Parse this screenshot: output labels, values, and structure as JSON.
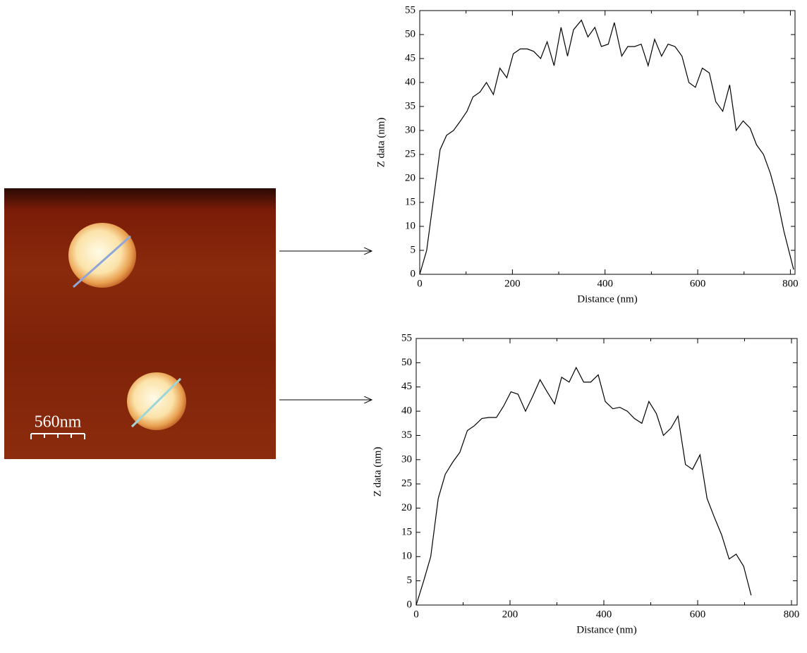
{
  "image": {
    "scale_label": "560nm"
  },
  "chart_data": [
    {
      "type": "line",
      "x_label": "Distance (nm)",
      "y_label": "Z data (nm)",
      "color": "#000000",
      "x": [
        0,
        15,
        44,
        58,
        73,
        88,
        102,
        115,
        130,
        144,
        159,
        173,
        188,
        202,
        217,
        232,
        246,
        261,
        275,
        290,
        305,
        319,
        332,
        349,
        363,
        378,
        392,
        407,
        420,
        436,
        449,
        464,
        478,
        493,
        507,
        522,
        536,
        551,
        566,
        581,
        595,
        610,
        625,
        639,
        654,
        669,
        683,
        698,
        713,
        727,
        742,
        757,
        771,
        786,
        807
      ],
      "values": [
        0,
        5,
        26,
        29,
        30,
        32,
        34,
        37,
        38,
        40,
        37.5,
        43,
        41,
        46,
        47,
        47,
        46.5,
        45,
        48.5,
        43.5,
        51.5,
        45.5,
        51,
        53,
        49.5,
        51.5,
        47.5,
        48,
        52.5,
        45.5,
        47.5,
        47.5,
        48,
        43.5,
        49,
        45.5,
        48,
        47.5,
        45.5,
        40,
        39,
        43,
        42,
        36,
        34,
        39.5,
        30,
        32,
        30.5,
        27,
        25,
        21,
        16,
        9,
        1
      ],
      "xlim": [
        0,
        810
      ],
      "xticks": [
        0,
        200,
        400,
        600,
        800
      ],
      "ylim": [
        0,
        55
      ],
      "yticks": [
        0,
        5,
        10,
        15,
        20,
        25,
        30,
        35,
        40,
        45,
        50,
        55
      ]
    },
    {
      "type": "line",
      "x_label": "Distance (nm)",
      "y_label": "Z data (nm)",
      "color": "#000000",
      "x": [
        0,
        16,
        31,
        47,
        62,
        78,
        93,
        109,
        124,
        140,
        155,
        171,
        186,
        202,
        217,
        233,
        248,
        264,
        279,
        295,
        310,
        326,
        341,
        357,
        372,
        388,
        403,
        419,
        434,
        450,
        465,
        481,
        496,
        512,
        527,
        543,
        558,
        574,
        589,
        605,
        620,
        636,
        651,
        667,
        682,
        698,
        714
      ],
      "values": [
        0,
        5,
        10,
        22,
        27,
        29.5,
        31.5,
        36,
        37,
        38.5,
        38.7,
        38.7,
        41,
        44,
        43.5,
        40,
        43,
        46.5,
        44,
        41.5,
        47,
        46,
        49,
        46,
        46,
        47.5,
        42,
        40.5,
        40.8,
        40,
        38.5,
        37.5,
        42,
        39.5,
        35,
        36.5,
        39,
        29,
        28,
        31,
        22,
        18,
        14.5,
        9.5,
        10.5,
        8,
        2
      ],
      "xlim": [
        0,
        812
      ],
      "xticks": [
        0,
        200,
        400,
        600,
        800
      ],
      "ylim": [
        0,
        55
      ],
      "yticks": [
        0,
        5,
        10,
        15,
        20,
        25,
        30,
        35,
        40,
        45,
        50,
        55
      ]
    }
  ]
}
